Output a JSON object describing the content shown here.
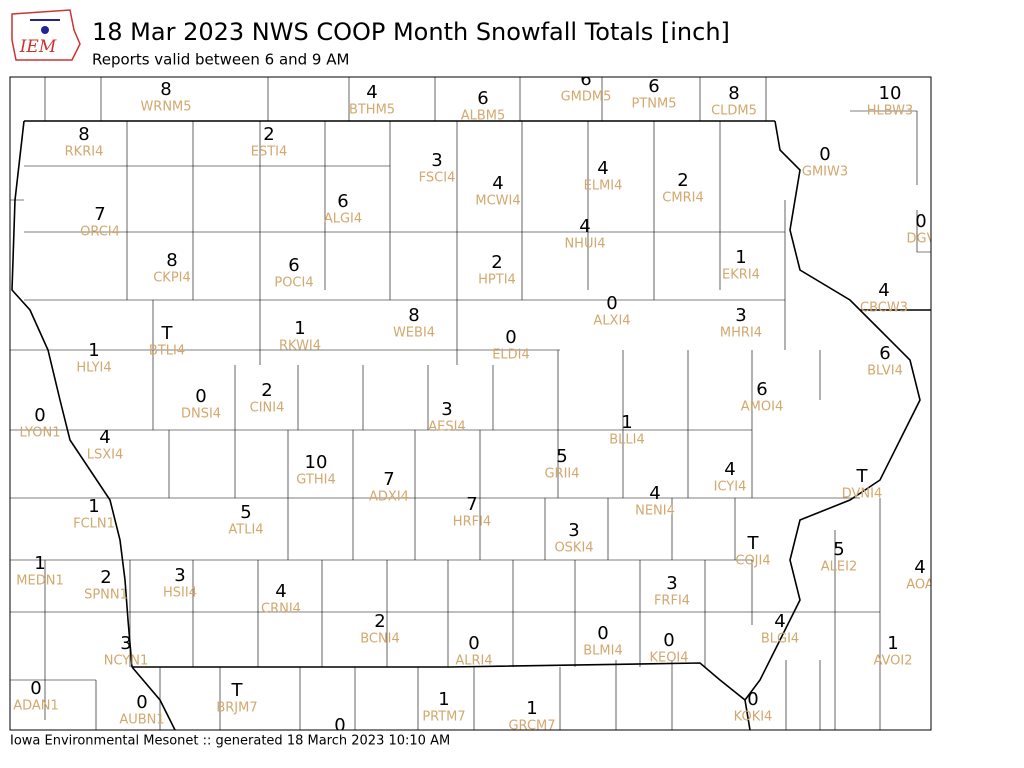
{
  "header": {
    "title": "18 Mar 2023 NWS COOP Month Snowfall Totals [inch]",
    "subtitle": "Reports valid between 6 and 9 AM",
    "logo": "IEM"
  },
  "stations": [
    {
      "value": "8",
      "id": "WRNM5"
    },
    {
      "value": "4",
      "id": "BTHM5"
    },
    {
      "value": "6",
      "id": "ALBM5"
    },
    {
      "value": "6",
      "id": "GMDM5"
    },
    {
      "value": "6",
      "id": "PTNM5"
    },
    {
      "value": "8",
      "id": "CLDM5"
    },
    {
      "value": "10",
      "id": "HLBW3"
    },
    {
      "value": "8",
      "id": "RKRI4"
    },
    {
      "value": "2",
      "id": "ESTI4"
    },
    {
      "value": "3",
      "id": "FSCI4"
    },
    {
      "value": "4",
      "id": "ELMI4"
    },
    {
      "value": "4",
      "id": "MCWI4"
    },
    {
      "value": "2",
      "id": "CMRI4"
    },
    {
      "value": "0",
      "id": "GMIW3"
    },
    {
      "value": "6",
      "id": "ALGI4"
    },
    {
      "value": "7",
      "id": "ORCI4"
    },
    {
      "value": "4",
      "id": "NHUI4"
    },
    {
      "value": "0",
      "id": "DGV"
    },
    {
      "value": "8",
      "id": "CKPI4"
    },
    {
      "value": "6",
      "id": "POCI4"
    },
    {
      "value": "2",
      "id": "HPTI4"
    },
    {
      "value": "1",
      "id": "EKRI4"
    },
    {
      "value": "4",
      "id": "CBCW3"
    },
    {
      "value": "0",
      "id": "ALXI4"
    },
    {
      "value": "3",
      "id": "MHRI4"
    },
    {
      "value": "8",
      "id": "WEBI4"
    },
    {
      "value": "0",
      "id": "ELDI4"
    },
    {
      "value": "T",
      "id": "BTLI4"
    },
    {
      "value": "1",
      "id": "RKWI4"
    },
    {
      "value": "1",
      "id": "HLYI4"
    },
    {
      "value": "6",
      "id": "BLVI4"
    },
    {
      "value": "0",
      "id": "LYON1"
    },
    {
      "value": "0",
      "id": "DNSI4"
    },
    {
      "value": "2",
      "id": "CINI4"
    },
    {
      "value": "3",
      "id": "AESI4"
    },
    {
      "value": "6",
      "id": "AMOI4"
    },
    {
      "value": "1",
      "id": "BLLI4"
    },
    {
      "value": "4",
      "id": "LSXI4"
    },
    {
      "value": "10",
      "id": "GTHI4"
    },
    {
      "value": "7",
      "id": "ADXI4"
    },
    {
      "value": "5",
      "id": "GRII4"
    },
    {
      "value": "4",
      "id": "ICYI4"
    },
    {
      "value": "T",
      "id": "DVNI4"
    },
    {
      "value": "7",
      "id": "HRFI4"
    },
    {
      "value": "4",
      "id": "NENI4"
    },
    {
      "value": "1",
      "id": "FCLN1"
    },
    {
      "value": "5",
      "id": "ATLI4"
    },
    {
      "value": "3",
      "id": "OSKI4"
    },
    {
      "value": "T",
      "id": "COJI4"
    },
    {
      "value": "5",
      "id": "ALEI2"
    },
    {
      "value": "1",
      "id": "MEDN1"
    },
    {
      "value": "2",
      "id": "SPNN1"
    },
    {
      "value": "3",
      "id": "HSII4"
    },
    {
      "value": "4",
      "id": "CRNI4"
    },
    {
      "value": "3",
      "id": "FRFI4"
    },
    {
      "value": "4",
      "id": "AOA"
    },
    {
      "value": "2",
      "id": "BCNI4"
    },
    {
      "value": "0",
      "id": "ALRI4"
    },
    {
      "value": "0",
      "id": "BLMI4"
    },
    {
      "value": "0",
      "id": "KEOI4"
    },
    {
      "value": "4",
      "id": "BLGI4"
    },
    {
      "value": "1",
      "id": "AVOI2"
    },
    {
      "value": "3",
      "id": "NCYN1"
    },
    {
      "value": "0",
      "id": "ADAN1"
    },
    {
      "value": "0",
      "id": "AUBN1"
    },
    {
      "value": "T",
      "id": "BRJM7"
    },
    {
      "value": "1",
      "id": "PRTM7"
    },
    {
      "value": "1",
      "id": "GRCM7"
    },
    {
      "value": "0"
    },
    {
      "value": "0",
      "id": "KOKI4"
    }
  ],
  "footer": "Iowa Environmental Mesonet :: generated 18 March 2023 10:10 AM"
}
